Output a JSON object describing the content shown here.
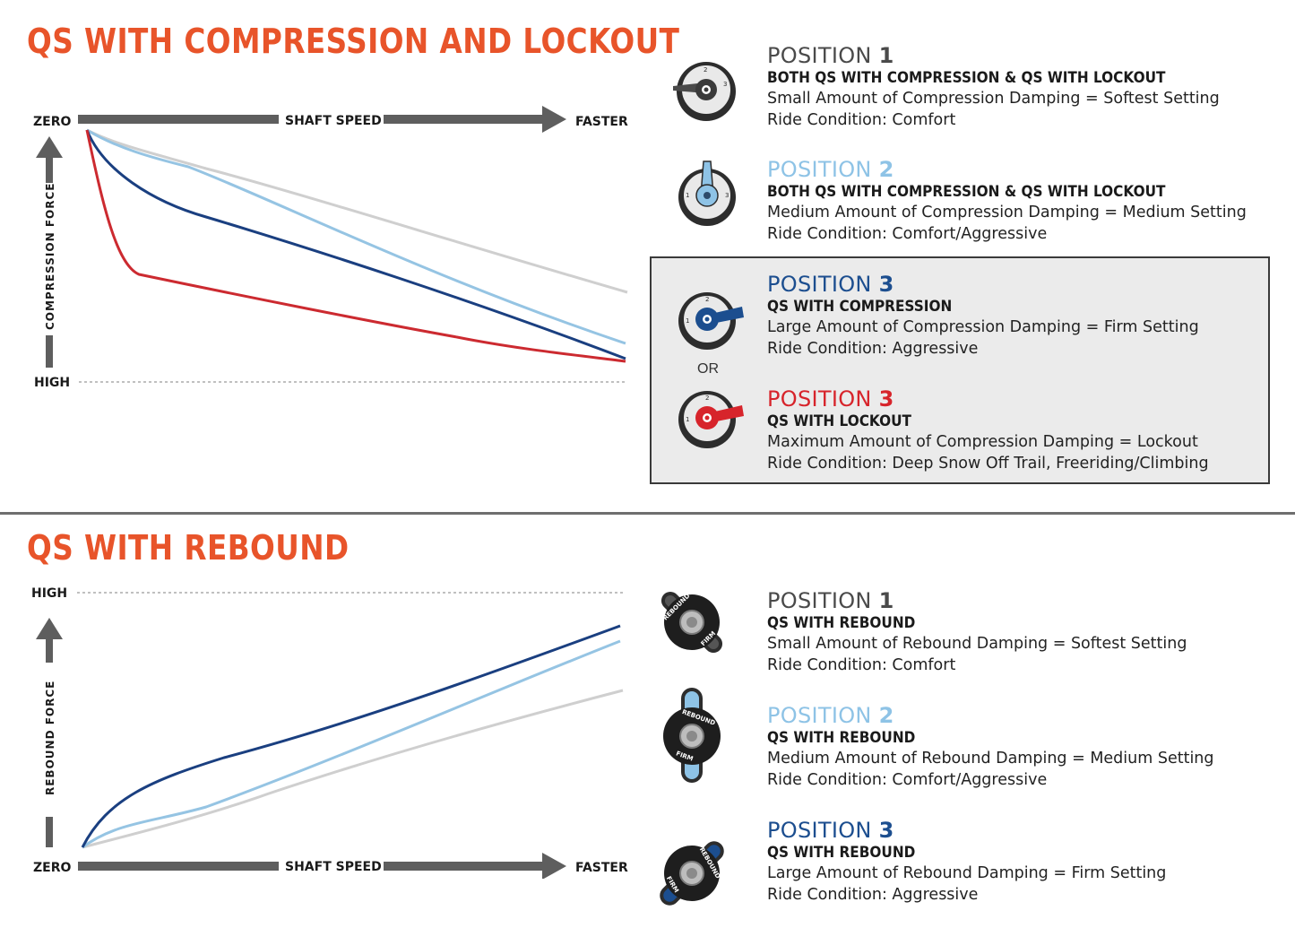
{
  "colors": {
    "title": "#e8542a",
    "gray_arrow": "#5e5e5e",
    "pos_gray": "#4a4a4a",
    "pos_lightblue": "#8ec3e6",
    "pos_darkblue": "#1c4e8f",
    "pos_red": "#d7242b",
    "line_gray": "#cfcfcf",
    "line_lightblue": "#95c4e3",
    "line_darkblue": "#1a3f80",
    "line_red": "#cc2a30"
  },
  "compression": {
    "title": "QS WITH COMPRESSION AND LOCKOUT",
    "graph": {
      "zero_label": "ZERO",
      "shaft_speed_label": "SHAFT SPEED",
      "faster_label": "FASTER",
      "y_label": "COMPRESSION FORCE",
      "high_label": "HIGH"
    },
    "positions": [
      {
        "word": "POSITION",
        "num": "1",
        "color": "#4a4a4a",
        "knob": "gray-compression-knob",
        "sub": "BOTH QS WITH COMPRESSION & QS WITH LOCKOUT",
        "line1": "Small Amount of Compression Damping = Softest Setting",
        "line2": "Ride Condition: Comfort"
      },
      {
        "word": "POSITION",
        "num": "2",
        "color": "#8ec3e6",
        "knob": "lightblue-compression-knob",
        "sub": "BOTH QS WITH COMPRESSION & QS WITH LOCKOUT",
        "line1": "Medium Amount of Compression Damping = Medium Setting",
        "line2": "Ride Condition: Comfort/Aggressive"
      },
      {
        "word": "POSITION",
        "num": "3",
        "color": "#1c4e8f",
        "knob": "darkblue-compression-knob",
        "sub": "QS WITH COMPRESSION",
        "line1": "Large Amount of Compression Damping = Firm Setting",
        "line2": "Ride Condition: Aggressive"
      },
      {
        "word": "POSITION",
        "num": "3",
        "color": "#d7242b",
        "knob": "red-lockout-knob",
        "sub": "QS WITH LOCKOUT",
        "line1": "Maximum Amount of Compression Damping = Lockout",
        "line2": "Ride Condition: Deep Snow Off Trail, Freeriding/Climbing"
      }
    ],
    "or_label": "OR"
  },
  "rebound": {
    "title": "QS WITH REBOUND",
    "graph": {
      "high_label": "HIGH",
      "y_label": "REBOUND FORCE",
      "zero_label": "ZERO",
      "shaft_speed_label": "SHAFT SPEED",
      "faster_label": "FASTER"
    },
    "knob_text": {
      "rebound": "REBOUND",
      "firm": "FIRM"
    },
    "positions": [
      {
        "word": "POSITION",
        "num": "1",
        "color": "#4a4a4a",
        "knob": "gray-rebound-knob",
        "sub": "QS WITH REBOUND",
        "line1": "Small Amount of Rebound Damping = Softest Setting",
        "line2": "Ride Condition: Comfort"
      },
      {
        "word": "POSITION",
        "num": "2",
        "color": "#8ec3e6",
        "knob": "lightblue-rebound-knob",
        "sub": "QS WITH REBOUND",
        "line1": "Medium Amount of Rebound Damping = Medium Setting",
        "line2": "Ride Condition: Comfort/Aggressive"
      },
      {
        "word": "POSITION",
        "num": "3",
        "color": "#1c4e8f",
        "knob": "darkblue-rebound-knob",
        "sub": "QS WITH REBOUND",
        "line1": "Large Amount of Rebound Damping = Firm Setting",
        "line2": "Ride Condition: Aggressive"
      }
    ]
  }
}
